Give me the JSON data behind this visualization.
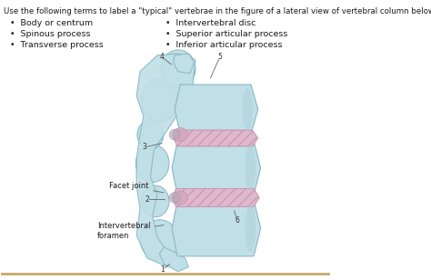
{
  "title": "Use the following terms to label a \"typical\" vertebrae in the figure of a lateral view of vertebral column below",
  "left_bullets": [
    "Body or centrum",
    "Spinous process",
    "Transverse process"
  ],
  "right_bullets": [
    "Intervertebral disc",
    "Superior articular process",
    "Inferior articular process"
  ],
  "bg_color": "#ffffff",
  "text_color": "#1a1a1a",
  "title_fontsize": 6.2,
  "bullet_fontsize": 6.8,
  "label_fontsize": 6.2,
  "vert_color": "#c0dfe6",
  "vert_ec": "#88b8c4",
  "disc_color": "#e0b8cc",
  "disc_ec": "#c090aa",
  "disc_hatch_color": "#cc9ab8",
  "bottom_line_color": "#c8a96e",
  "line_color": "#666666",
  "num_label_fontsize": 5.5,
  "text_label_fontsize": 6.0
}
